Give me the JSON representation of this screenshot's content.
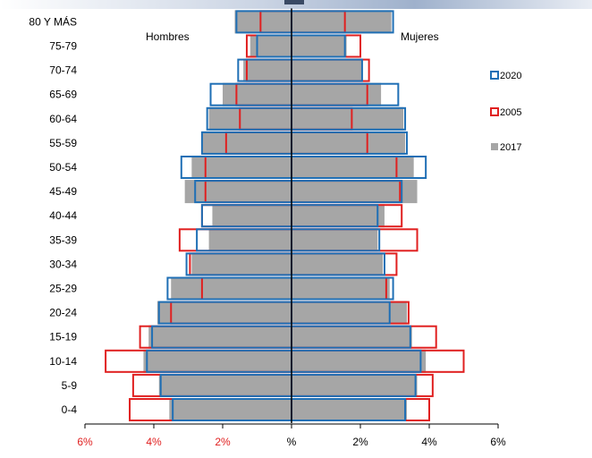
{
  "chart_data": {
    "type": "bar",
    "subtype": "population-pyramid",
    "categories": [
      "0-4",
      "5-9",
      "10-14",
      "15-19",
      "20-24",
      "25-29",
      "30-34",
      "35-39",
      "40-44",
      "45-49",
      "50-54",
      "55-59",
      "60-64",
      "65-69",
      "70-74",
      "75-79",
      "80 Y MÁS"
    ],
    "left_label": "Hombres",
    "right_label": "Mujeres",
    "x_ticks": [
      "6%",
      "4%",
      "2%",
      "%",
      "2%",
      "4%",
      "6%"
    ],
    "x_tick_values": [
      -6,
      -4,
      -2,
      0,
      2,
      4,
      6
    ],
    "xlim": [
      -6,
      6
    ],
    "legend_position": "right",
    "series": [
      {
        "name": "2017",
        "style": "filled-gray",
        "color": "#a6a6a6",
        "hombres": [
          3.55,
          3.85,
          4.3,
          4.15,
          3.9,
          3.5,
          2.9,
          2.4,
          2.3,
          3.1,
          2.9,
          2.6,
          2.4,
          2.0,
          1.4,
          1.2,
          1.65
        ],
        "mujeres": [
          3.35,
          3.65,
          3.9,
          3.5,
          3.35,
          2.85,
          2.65,
          2.5,
          2.7,
          3.65,
          3.55,
          3.3,
          3.25,
          2.6,
          2.05,
          1.6,
          2.9
        ]
      },
      {
        "name": "2005",
        "style": "outline",
        "color": "#e02020",
        "hombres": [
          4.7,
          4.6,
          5.4,
          4.4,
          3.5,
          2.6,
          2.95,
          3.25,
          2.6,
          2.5,
          2.5,
          1.9,
          1.5,
          1.6,
          1.3,
          1.3,
          0.9
        ],
        "mujeres": [
          4.0,
          4.1,
          5.0,
          4.2,
          3.4,
          2.75,
          3.05,
          3.65,
          3.2,
          3.15,
          3.05,
          2.2,
          1.75,
          2.2,
          2.25,
          2.0,
          1.55
        ]
      },
      {
        "name": "2020",
        "style": "outline",
        "color": "#1f6fb5",
        "hombres": [
          3.45,
          3.8,
          4.2,
          4.05,
          3.85,
          3.6,
          3.05,
          2.75,
          2.6,
          2.8,
          3.2,
          2.6,
          2.45,
          2.35,
          1.55,
          1.0,
          1.6
        ],
        "mujeres": [
          3.3,
          3.6,
          3.75,
          3.45,
          2.85,
          2.95,
          2.7,
          2.55,
          2.5,
          3.2,
          3.9,
          3.35,
          3.3,
          3.1,
          2.05,
          1.55,
          2.95
        ]
      }
    ],
    "legend": [
      "2020",
      "2005",
      "2017"
    ]
  }
}
